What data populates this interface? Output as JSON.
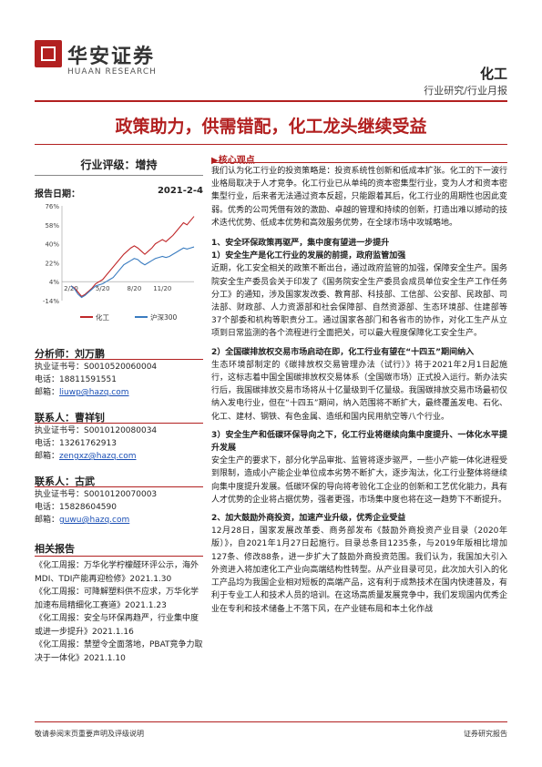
{
  "header": {
    "logo_cn": "华安证券",
    "logo_en": "HUAAN RESEARCH",
    "industry": "化工",
    "report_type": "行业研究/行业月报"
  },
  "title": "政策助力，供需错配，化工龙头继续受益",
  "rating": {
    "label": "行业评级：",
    "value": "增持"
  },
  "report_date": {
    "label": "报告日期：",
    "value": "2021-2-4"
  },
  "chart_data": {
    "type": "line",
    "y_ticks": [
      "76%",
      "58%",
      "40%",
      "22%",
      "4%",
      "-14%"
    ],
    "x_ticks": [
      "2/20",
      "5/20",
      "8/20",
      "11/20"
    ],
    "ylim": [
      -14,
      76
    ],
    "series": [
      {
        "name": "化工",
        "color": "#c0282a",
        "values": [
          0,
          -2,
          -6,
          -10,
          -8,
          -5,
          -2,
          2,
          4,
          6,
          10,
          14,
          18,
          22,
          26,
          30,
          33,
          36,
          38,
          36,
          33,
          30,
          33,
          36,
          40,
          42,
          44,
          42,
          45,
          48,
          52,
          56,
          60,
          58,
          62,
          66
        ]
      },
      {
        "name": "沪深300",
        "color": "#3a7cc0",
        "values": [
          0,
          -3,
          -8,
          -11,
          -9,
          -6,
          -3,
          0,
          1,
          2,
          4,
          6,
          8,
          12,
          16,
          20,
          22,
          24,
          26,
          25,
          22,
          20,
          22,
          24,
          26,
          27,
          28,
          27,
          28,
          30,
          32,
          34,
          36,
          35,
          36,
          37
        ]
      }
    ]
  },
  "analysts": [
    {
      "heading": "分析师：刘万鹏",
      "cert": "执业证书号：S0010520060004",
      "phone": "电话：18811591551",
      "email_label": "邮箱：",
      "email": "liuwp@hazq.com"
    },
    {
      "heading": "联系人：曹祥钊",
      "cert": "执业证书号：S0010120080034",
      "phone": "电话：13261762913",
      "email_label": "邮箱：",
      "email": "zengxz@hazq.com"
    },
    {
      "heading": "联系人：古武",
      "cert": "执业证书号：S0010120070003",
      "phone": "电话：15828604590",
      "email_label": "邮箱：",
      "email": "guwu@hazq.com"
    }
  ],
  "related": {
    "heading": "相关报告",
    "items": [
      "《化工周报：万华化学柠檬醛环评公示，海外MDI、TDI产能再迎检修》2021.1.30",
      "《化工周报：可降解塑料供不应求，万华化学加速布局精细化工赛道》2021.1.23",
      "《化工周报：安全与环保再趋严，行业集中度或进一步提升》2021.1.16",
      "《化工周报：禁塑令全面落地，PBAT竞争力取决于一体化》2021.1.10"
    ]
  },
  "core_views": {
    "heading": "▶核心观点",
    "intro": "我们认为化工行业的投资策略是：投资系统性创新和低成本扩张。化工的下一波行业格局取决于人才竞争。化工行业已从单纯的资本密集型行业，变为人才和资本密集型行业，后来者无法通过资本反超，只能跟着其后，化工行业的周期性也因此变弱。优秀的公司凭借有效的激励、卓越的管理和持续的创新，打造出难以撼动的技术迭代优势、低成本优势和高效服务优势，在全球市场中攻城略地。",
    "s1_title": "1、安全环保政策再驱严，集中度有望进一步提升",
    "s1_sub": "1）安全生产是化工行业的发展的前提，政府监管加强",
    "s1_text": "近期，化工安全相关的政策不断出台，通过政府监管的加强，保障安全生产。国务院安全生产委员会关于印发了《国务院安全生产委员会成员单位安全生产工作任务分工》的通知，涉及国家发改委、教育部、科技部、工信部、公安部、民政部、司法部、财政部、人力资源部和社会保障部、自然资源部、生态环境部、住建部等37个部委和机构等职责分工。通过国家各部门和各省市的协作，对化工生产从立项到日常监测的各个流程进行全面把关，可以最大程度保障化工安全生产。",
    "s2_sub": "2）全国碳排放权交易市场启动在即，化工行业有望在“十四五”期间纳入",
    "s2_text": "生态环境部制定的《碳排放权交易管理办法（试行）》将于2021年2月1日起施行，这标志着中国全国碳排放权交易体系（全国碳市场）正式投入运行。新办法实行后，我国碳排放交易市场将从十亿量级到千亿量级。我国碳排放交易市场最初仅纳入发电行业，但在“十四五”期间，纳入范围将不断扩大，最终覆盖发电、石化、化工、建材、钢铁、有色金属、造纸和国内民用航空等八个行业。",
    "s3_sub": "3）安全生产和低碳环保导向之下，化工行业将继续向集中度提升、一体化水平提升发展",
    "s3_text": "安全生产的要求下，部分化学品审批、监管将逐步驱严，一些小产能一体化进程受到限制，造成小产能企业单位成本劣势不断扩大，逐步淘汰，化工行业整体将继续向集中度提升发展。低碳环保的导向将考验化工企业的创新和工艺优化能力，具有人才优势的企业将占据优势，强者更强，市场集中度也将在这一趋势下不断提升。",
    "s4_title": "2、加大鼓励外商投资，加速产业升级，优秀企业受益",
    "s4_text": "12月28日，国家发展改革委、商务部发布《鼓励外商投资产业目录（2020年版）》，自2021年1月27日起施行。目录总条目1235条，与2019年版相比增加127条、修改88条，进一步扩大了鼓励外商投资范围。我们认为，我国加大引入外资进入将加速化工产业向高端结构性转型。从产业目录可见，此次加大引入的化工产品均为我国企业相对短板的高端产品，这有利于成熟技术在国内快速普及，有利于专业工人和技术人员的培训。在这场高质量发展竞争中，我们发现国内优秀企业在专利和技术储备上不落下风，在产业链布局和本土化作战"
  },
  "footer": {
    "left": "敬请参阅末页重要声明及评级说明",
    "right": "证券研究报告"
  }
}
